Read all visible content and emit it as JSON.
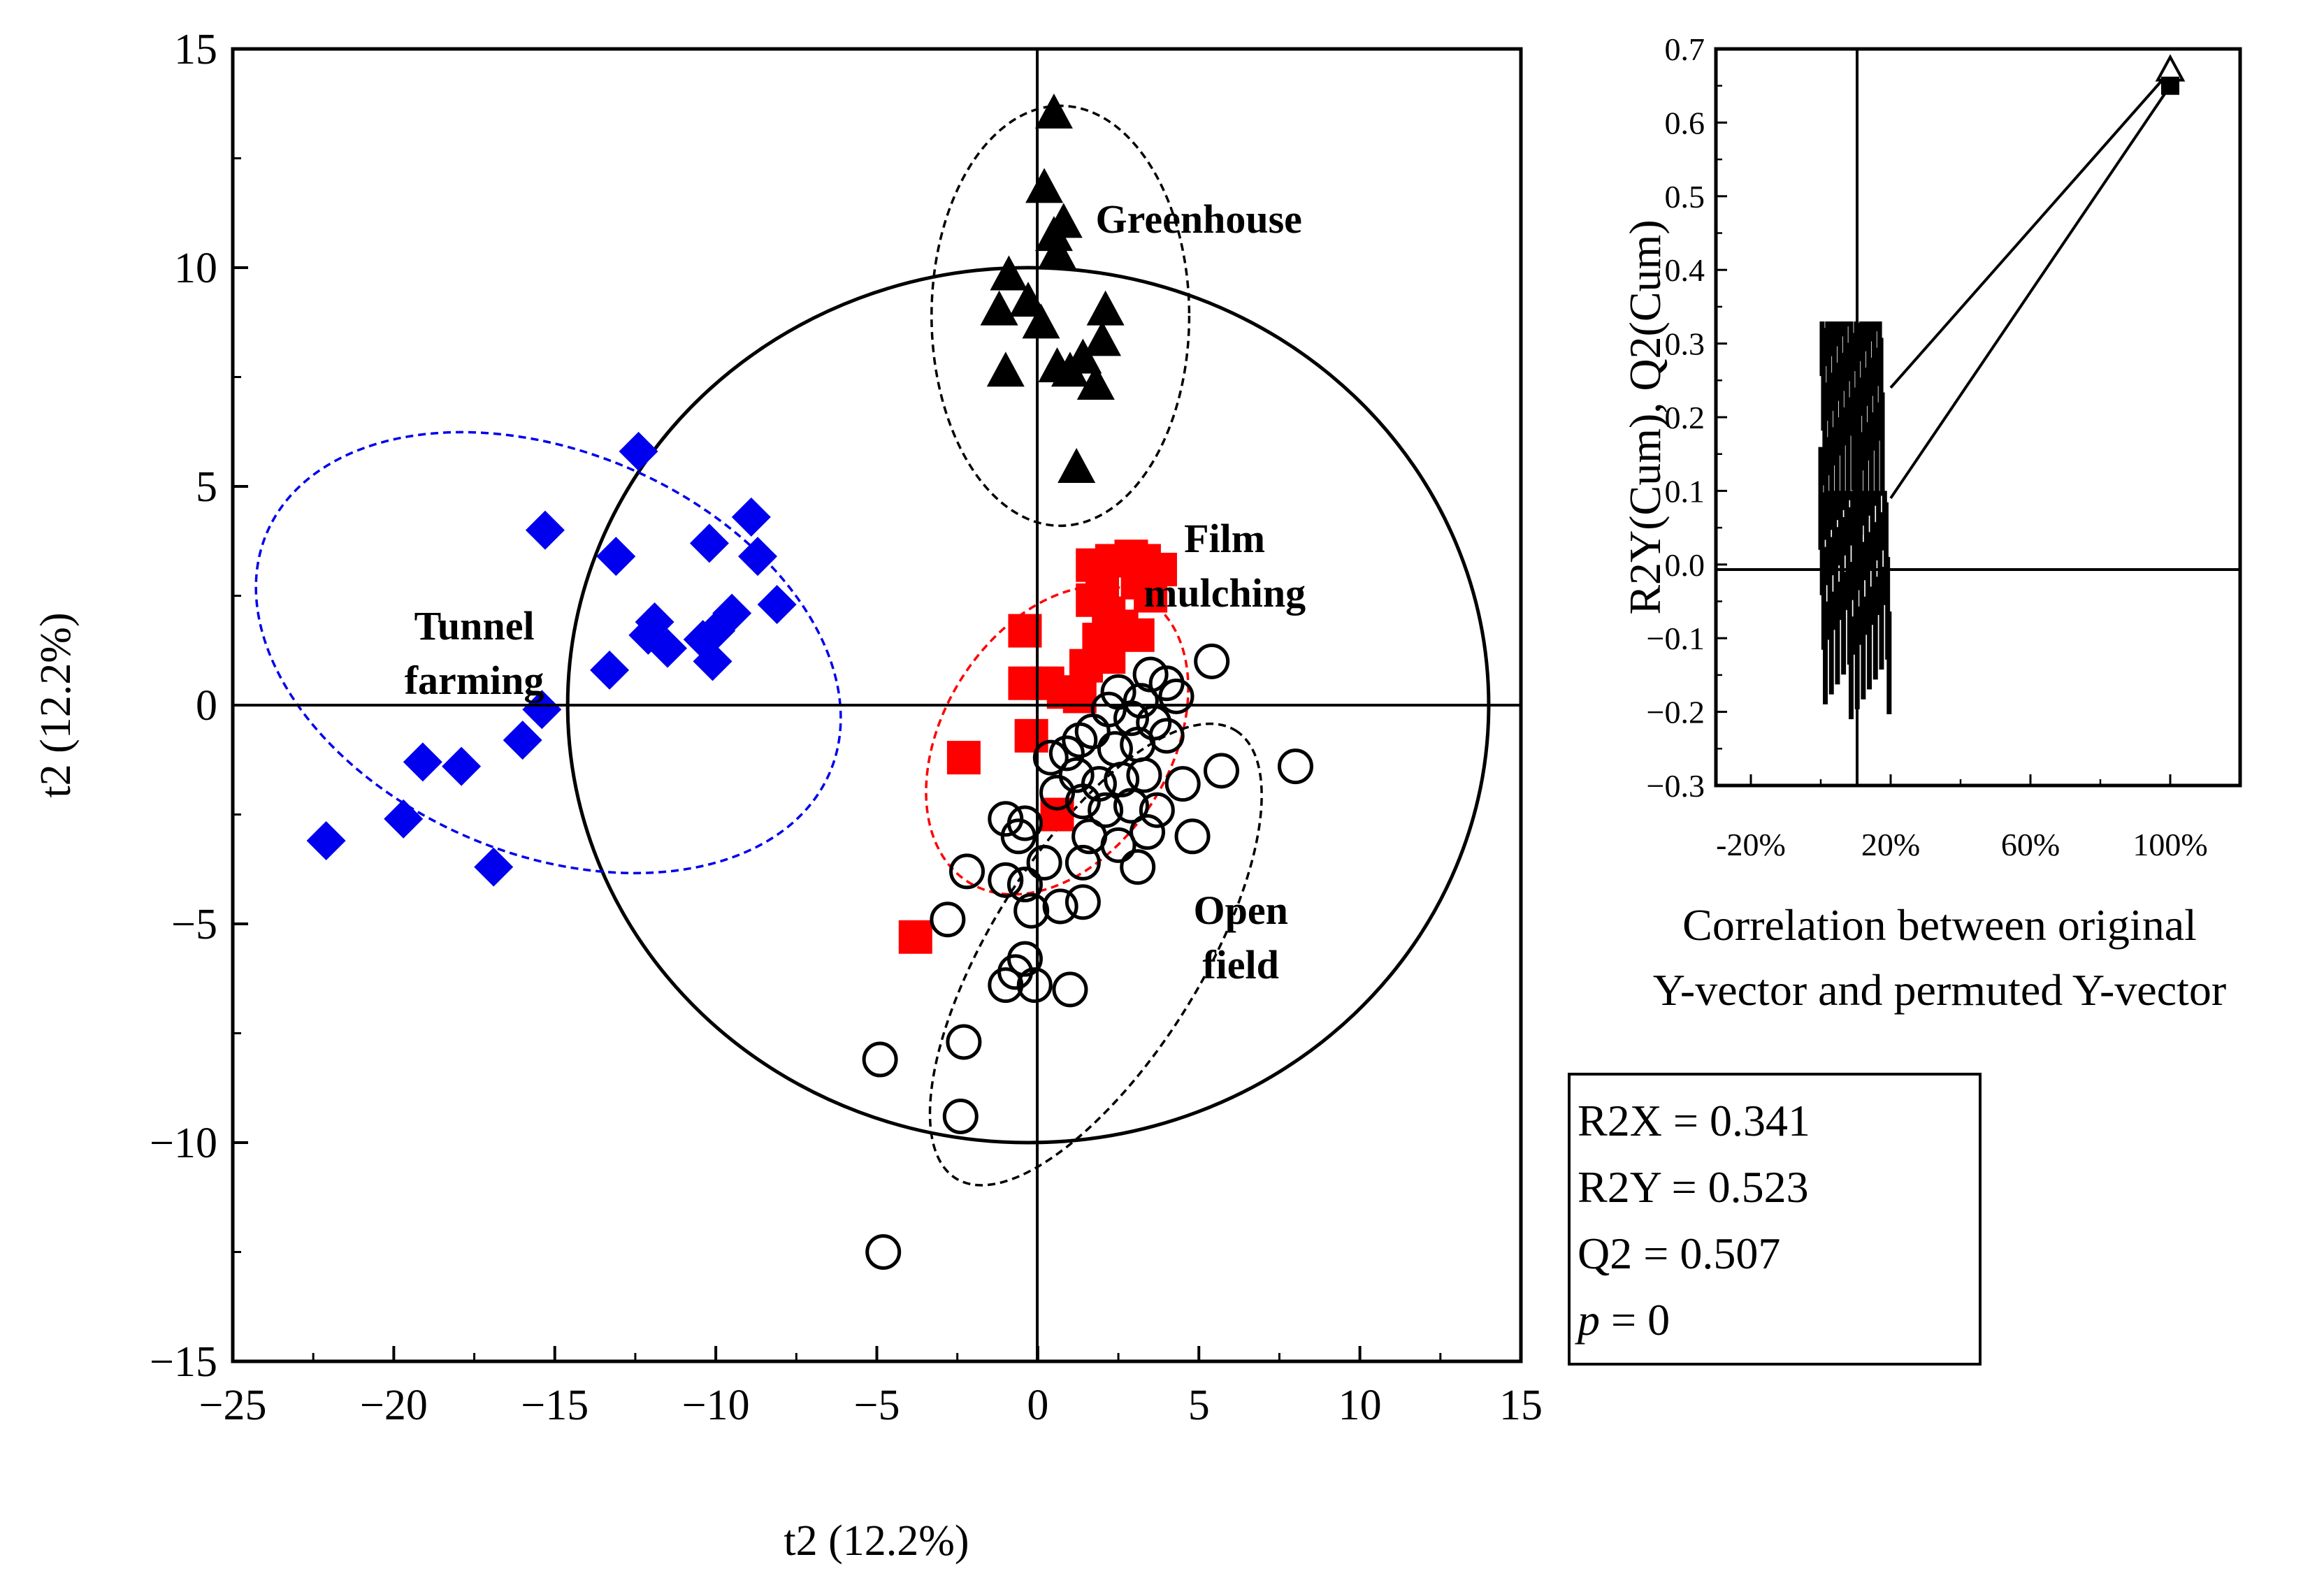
{
  "chart_data": [
    {
      "type": "scatter",
      "xlabel": "t2 (12.2%)",
      "ylabel": "t2 (12.2%)",
      "xlim": [
        -25,
        15
      ],
      "ylim": [
        -15,
        15
      ],
      "xticks": [
        "−25",
        "−20",
        "−15",
        "−10",
        "−5",
        "0",
        "5",
        "10",
        "15"
      ],
      "yticks": [
        "15",
        "10",
        "5",
        "0",
        "−5",
        "−10",
        "−15"
      ],
      "hotelling_ellipse": {
        "cx": -0.3,
        "cy": 0,
        "rx": 14.3,
        "ry": 10.0,
        "color": "#000000"
      },
      "series": [
        {
          "name": "Greenhouse",
          "label_lines": [
            "Greenhouse"
          ],
          "label_pos": [
            5,
            10.8
          ],
          "marker": "triangle-filled",
          "color": "#000000",
          "confidence_ellipse": {
            "cx": 0.7,
            "cy": 8.9,
            "rx": 4.0,
            "ry": 4.8,
            "angle": 0,
            "color": "#000000"
          },
          "points": [
            [
              0.5,
              13.5
            ],
            [
              0.2,
              11.8
            ],
            [
              0.5,
              10.7
            ],
            [
              0.8,
              11.0
            ],
            [
              0.6,
              10.3
            ],
            [
              -0.9,
              9.8
            ],
            [
              -1.2,
              9.0
            ],
            [
              -0.3,
              9.2
            ],
            [
              0.1,
              8.7
            ],
            [
              2.1,
              9.0
            ],
            [
              2.0,
              8.3
            ],
            [
              -1.0,
              7.6
            ],
            [
              0.6,
              7.7
            ],
            [
              1.0,
              7.6
            ],
            [
              1.4,
              7.9
            ],
            [
              1.8,
              7.3
            ],
            [
              1.2,
              5.4
            ]
          ]
        },
        {
          "name": "Tunnel farming",
          "label_lines": [
            "Tunnel",
            "farming"
          ],
          "label_pos": [
            -17.5,
            1.5
          ],
          "marker": "diamond-filled",
          "color": "#0000ee",
          "confidence_ellipse": {
            "cx": -15.2,
            "cy": 1.2,
            "rx": 9.5,
            "ry": 4.6,
            "angle": 23,
            "color": "#0000ee"
          },
          "points": [
            [
              -12.4,
              5.8
            ],
            [
              -15.3,
              4.0
            ],
            [
              -13.1,
              3.4
            ],
            [
              -10.2,
              3.7
            ],
            [
              -8.9,
              4.3
            ],
            [
              -8.7,
              3.4
            ],
            [
              -8.1,
              2.3
            ],
            [
              -9.5,
              2.1
            ],
            [
              -10.0,
              1.7
            ],
            [
              -10.4,
              1.5
            ],
            [
              -11.9,
              1.9
            ],
            [
              -12.1,
              1.6
            ],
            [
              -11.5,
              1.3
            ],
            [
              -13.3,
              0.8
            ],
            [
              -10.1,
              1.0
            ],
            [
              -15.4,
              -0.1
            ],
            [
              -16.0,
              -0.8
            ],
            [
              -17.9,
              -1.4
            ],
            [
              -19.1,
              -1.3
            ],
            [
              -19.7,
              -2.6
            ],
            [
              -22.1,
              -3.1
            ],
            [
              -16.9,
              -3.7
            ]
          ]
        },
        {
          "name": "Film mulching",
          "label_lines": [
            "Film",
            "mulching"
          ],
          "label_pos": [
            5.8,
            3.5
          ],
          "marker": "square-filled",
          "color": "#ff0000",
          "confidence_ellipse": {
            "cx": 0.6,
            "cy": -0.8,
            "rx": 5.2,
            "ry": 2.6,
            "angle": -58,
            "color": "#ff0000"
          },
          "points": [
            [
              1.7,
              3.2
            ],
            [
              2.3,
              3.3
            ],
            [
              2.9,
              3.4
            ],
            [
              3.3,
              3.3
            ],
            [
              3.8,
              3.1
            ],
            [
              2.0,
              2.7
            ],
            [
              3.1,
              2.8
            ],
            [
              3.5,
              2.5
            ],
            [
              1.7,
              2.4
            ],
            [
              2.2,
              2.1
            ],
            [
              2.6,
              1.8
            ],
            [
              3.1,
              1.6
            ],
            [
              1.9,
              1.5
            ],
            [
              2.2,
              1.1
            ],
            [
              1.5,
              0.9
            ],
            [
              -0.4,
              1.7
            ],
            [
              -0.4,
              0.5
            ],
            [
              0.3,
              0.5
            ],
            [
              0.8,
              0.3
            ],
            [
              1.3,
              0.2
            ],
            [
              -0.2,
              -0.7
            ],
            [
              -2.3,
              -1.2
            ],
            [
              0.6,
              -2.5
            ],
            [
              -3.8,
              -5.3
            ]
          ]
        },
        {
          "name": "Open field",
          "label_lines": [
            "Open",
            "field"
          ],
          "label_pos": [
            6.3,
            -5.0
          ],
          "marker": "circle-open",
          "color": "#000000",
          "confidence_ellipse": {
            "cx": 1.8,
            "cy": -5.7,
            "rx": 8.2,
            "ry": 2.4,
            "angle": -58,
            "color": "#000000"
          },
          "points": [
            [
              5.4,
              1.0
            ],
            [
              3.5,
              0.7
            ],
            [
              4.0,
              0.5
            ],
            [
              3.2,
              0.1
            ],
            [
              2.5,
              0.3
            ],
            [
              4.3,
              0.2
            ],
            [
              3.6,
              -0.4
            ],
            [
              2.9,
              -0.3
            ],
            [
              2.2,
              -0.1
            ],
            [
              1.7,
              -0.6
            ],
            [
              4.0,
              -0.7
            ],
            [
              3.1,
              -0.9
            ],
            [
              2.4,
              -1.0
            ],
            [
              1.3,
              -0.8
            ],
            [
              0.9,
              -1.1
            ],
            [
              5.7,
              -1.5
            ],
            [
              8.0,
              -1.4
            ],
            [
              4.5,
              -1.8
            ],
            [
              3.3,
              -1.6
            ],
            [
              2.6,
              -1.7
            ],
            [
              1.9,
              -1.8
            ],
            [
              1.2,
              -1.6
            ],
            [
              0.4,
              -1.2
            ],
            [
              3.7,
              -2.4
            ],
            [
              2.9,
              -2.3
            ],
            [
              2.1,
              -2.4
            ],
            [
              1.4,
              -2.2
            ],
            [
              0.6,
              -2.0
            ],
            [
              4.8,
              -3.0
            ],
            [
              3.4,
              -2.9
            ],
            [
              2.5,
              -3.2
            ],
            [
              1.6,
              -3.0
            ],
            [
              -0.4,
              -2.7
            ],
            [
              -1.0,
              -2.6
            ],
            [
              -0.6,
              -3.0
            ],
            [
              3.1,
              -3.7
            ],
            [
              1.4,
              -3.6
            ],
            [
              0.2,
              -3.6
            ],
            [
              -0.4,
              -4.1
            ],
            [
              -1.0,
              -4.0
            ],
            [
              1.4,
              -4.5
            ],
            [
              0.7,
              -4.6
            ],
            [
              -0.2,
              -4.7
            ],
            [
              -2.2,
              -3.8
            ],
            [
              -2.8,
              -4.9
            ],
            [
              -0.4,
              -5.8
            ],
            [
              -0.7,
              -6.1
            ],
            [
              -0.1,
              -6.4
            ],
            [
              1.0,
              -6.5
            ],
            [
              -1.0,
              -6.4
            ],
            [
              -2.3,
              -7.7
            ],
            [
              -4.9,
              -8.1
            ],
            [
              -2.4,
              -9.4
            ],
            [
              -4.8,
              -12.5
            ]
          ]
        }
      ]
    },
    {
      "type": "scatter",
      "title": "",
      "ylabel": "R2Y(Cum), Q2(Cum)",
      "xlabel_lines": [
        "Correlation between original",
        "Y-vector and permuted Y-vector"
      ],
      "xlim": [
        -0.3,
        1.2
      ],
      "ylim": [
        -0.3,
        0.7
      ],
      "xticks": [
        {
          "value": -0.2,
          "label": "-20%"
        },
        {
          "value": 0.2,
          "label": "20%"
        },
        {
          "value": 0.6,
          "label": "60%"
        },
        {
          "value": 1.0,
          "label": "100%"
        }
      ],
      "yticks": [
        "0.7",
        "0.6",
        "0.5",
        "0.4",
        "0.3",
        "0.2",
        "0.1",
        "0.0",
        "−0.1",
        "−0.2",
        "−0.3"
      ],
      "series": [
        {
          "name": "R2Y(Cum)",
          "marker": "triangle-open",
          "color": "#000000",
          "original": [
            1.0,
            0.67
          ],
          "regression_from": [
            0.2,
            0.24
          ],
          "band": {
            "x": [
              0.0,
              0.18
            ],
            "y": [
              0.02,
              0.33
            ]
          }
        },
        {
          "name": "Q2(Cum)",
          "marker": "square-filled",
          "color": "#000000",
          "original": [
            1.0,
            0.65
          ],
          "regression_from": [
            0.2,
            0.09
          ],
          "band": {
            "x": [
              0.0,
              0.2
            ],
            "y": [
              -0.21,
              0.1
            ]
          }
        }
      ]
    }
  ],
  "stats": {
    "lines": [
      {
        "key": "R2X",
        "value": "R2X = 0.341"
      },
      {
        "key": "R2Y",
        "value": "R2Y = 0.523"
      },
      {
        "key": "Q2",
        "value": "Q2 = 0.507"
      }
    ],
    "p_symbol": "p",
    "p_rest": " = 0"
  }
}
